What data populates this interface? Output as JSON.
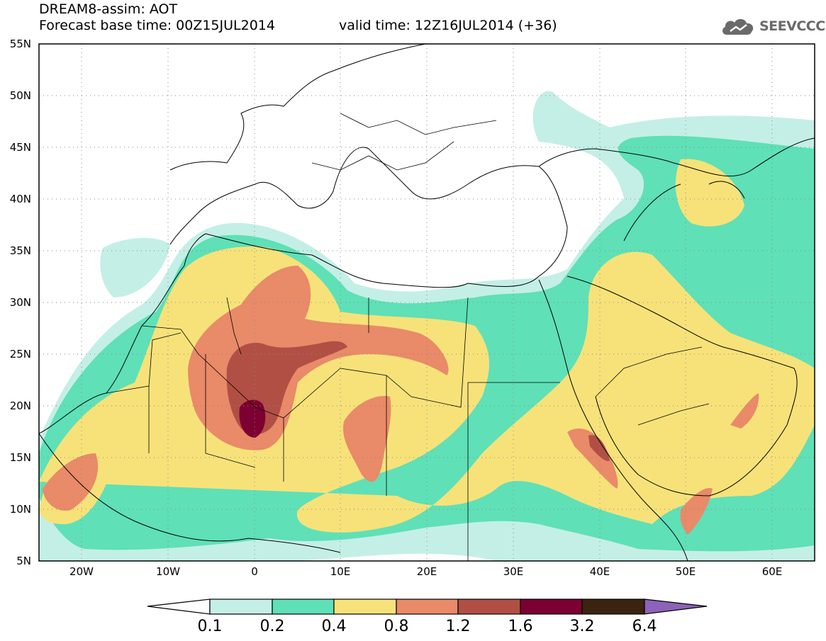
{
  "header": {
    "model": "DREAM8-assim: AOT",
    "base_time": "Forecast base time: 00Z15JUL2014",
    "valid_time": "valid time: 12Z16JUL2014 (+36)"
  },
  "logo": {
    "text": "SEEVCCC",
    "icon": "cloud-icon",
    "color": "#6a6a6a"
  },
  "axes": {
    "lat_labels": [
      "55N",
      "50N",
      "45N",
      "40N",
      "35N",
      "30N",
      "25N",
      "20N",
      "15N",
      "10N",
      "5N"
    ],
    "lon_labels": [
      "20W",
      "10W",
      "0",
      "10E",
      "20E",
      "30E",
      "40E",
      "50E",
      "60E"
    ]
  },
  "colorbar": {
    "labels": [
      "0.1",
      "0.2",
      "0.4",
      "0.8",
      "1.2",
      "1.6",
      "3.2",
      "6.4"
    ],
    "colors": [
      "#ffffff",
      "#c4efe6",
      "#5fe0b7",
      "#f7e27a",
      "#e98a68",
      "#b14f45",
      "#7c0031",
      "#3b2310",
      "#8d62b8"
    ]
  },
  "map": {
    "variable": "AOT",
    "extent": {
      "lon": [
        -25,
        65
      ],
      "lat": [
        5,
        55
      ]
    }
  }
}
